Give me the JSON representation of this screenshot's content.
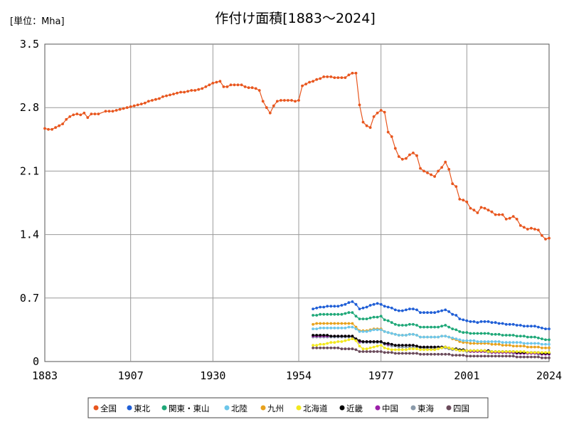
{
  "chart_data": {
    "type": "line",
    "title": "作付け面積[1883～2024]",
    "unit_label": "[単位：Mha]",
    "xlim": [
      1883,
      2024
    ],
    "ylim": [
      0,
      3.5
    ],
    "x_ticks": [
      1883,
      1907,
      1930,
      1954,
      1977,
      2001,
      2024
    ],
    "x_tick_labels": [
      "1883",
      "1907",
      "1930",
      "1954",
      "1977",
      "2001",
      "2024"
    ],
    "y_ticks": [
      0,
      0.7,
      1.4,
      2.1,
      2.8,
      3.5
    ],
    "y_tick_labels": [
      "0",
      "0.7",
      "1.4",
      "2.1",
      "2.8",
      "3.5"
    ],
    "grid": true,
    "legend_position": "bottom",
    "series": [
      {
        "name": "全国",
        "color": "#E8561E",
        "points": [
          [
            1883,
            2.57
          ],
          [
            1884,
            2.56
          ],
          [
            1885,
            2.56
          ],
          [
            1886,
            2.58
          ],
          [
            1887,
            2.6
          ],
          [
            1888,
            2.62
          ],
          [
            1889,
            2.67
          ],
          [
            1890,
            2.7
          ],
          [
            1891,
            2.72
          ],
          [
            1892,
            2.73
          ],
          [
            1893,
            2.72
          ],
          [
            1894,
            2.74
          ],
          [
            1895,
            2.69
          ],
          [
            1896,
            2.73
          ],
          [
            1897,
            2.73
          ],
          [
            1898,
            2.73
          ],
          [
            1900,
            2.76
          ],
          [
            1901,
            2.76
          ],
          [
            1902,
            2.76
          ],
          [
            1903,
            2.77
          ],
          [
            1904,
            2.78
          ],
          [
            1905,
            2.79
          ],
          [
            1906,
            2.8
          ],
          [
            1907,
            2.81
          ],
          [
            1908,
            2.82
          ],
          [
            1909,
            2.83
          ],
          [
            1910,
            2.84
          ],
          [
            1911,
            2.85
          ],
          [
            1912,
            2.87
          ],
          [
            1913,
            2.88
          ],
          [
            1914,
            2.89
          ],
          [
            1915,
            2.9
          ],
          [
            1916,
            2.92
          ],
          [
            1917,
            2.93
          ],
          [
            1918,
            2.94
          ],
          [
            1919,
            2.95
          ],
          [
            1920,
            2.96
          ],
          [
            1921,
            2.97
          ],
          [
            1922,
            2.97
          ],
          [
            1923,
            2.98
          ],
          [
            1924,
            2.99
          ],
          [
            1925,
            2.99
          ],
          [
            1926,
            3.0
          ],
          [
            1927,
            3.01
          ],
          [
            1928,
            3.03
          ],
          [
            1929,
            3.05
          ],
          [
            1930,
            3.07
          ],
          [
            1931,
            3.08
          ],
          [
            1932,
            3.09
          ],
          [
            1933,
            3.03
          ],
          [
            1934,
            3.03
          ],
          [
            1935,
            3.05
          ],
          [
            1936,
            3.05
          ],
          [
            1937,
            3.05
          ],
          [
            1938,
            3.05
          ],
          [
            1939,
            3.03
          ],
          [
            1940,
            3.02
          ],
          [
            1941,
            3.02
          ],
          [
            1942,
            3.01
          ],
          [
            1943,
            2.99
          ],
          [
            1944,
            2.87
          ],
          [
            1945,
            2.8
          ],
          [
            1946,
            2.74
          ],
          [
            1947,
            2.82
          ],
          [
            1948,
            2.87
          ],
          [
            1949,
            2.88
          ],
          [
            1950,
            2.88
          ],
          [
            1951,
            2.88
          ],
          [
            1952,
            2.88
          ],
          [
            1953,
            2.87
          ],
          [
            1954,
            2.88
          ],
          [
            1955,
            3.04
          ],
          [
            1956,
            3.06
          ],
          [
            1957,
            3.08
          ],
          [
            1958,
            3.09
          ],
          [
            1959,
            3.11
          ],
          [
            1960,
            3.12
          ],
          [
            1961,
            3.14
          ],
          [
            1962,
            3.14
          ],
          [
            1963,
            3.14
          ],
          [
            1964,
            3.13
          ],
          [
            1965,
            3.13
          ],
          [
            1966,
            3.13
          ],
          [
            1967,
            3.13
          ],
          [
            1968,
            3.16
          ],
          [
            1969,
            3.18
          ],
          [
            1970,
            3.18
          ],
          [
            1971,
            2.83
          ],
          [
            1972,
            2.64
          ],
          [
            1973,
            2.6
          ],
          [
            1974,
            2.58
          ],
          [
            1975,
            2.7
          ],
          [
            1976,
            2.74
          ],
          [
            1977,
            2.77
          ],
          [
            1978,
            2.75
          ],
          [
            1979,
            2.53
          ],
          [
            1980,
            2.48
          ],
          [
            1981,
            2.35
          ],
          [
            1982,
            2.26
          ],
          [
            1983,
            2.23
          ],
          [
            1984,
            2.24
          ],
          [
            1985,
            2.28
          ],
          [
            1986,
            2.3
          ],
          [
            1987,
            2.27
          ],
          [
            1988,
            2.13
          ],
          [
            1989,
            2.1
          ],
          [
            1990,
            2.08
          ],
          [
            1991,
            2.06
          ],
          [
            1992,
            2.04
          ],
          [
            1993,
            2.1
          ],
          [
            1994,
            2.14
          ],
          [
            1995,
            2.2
          ],
          [
            1996,
            2.12
          ],
          [
            1997,
            1.96
          ],
          [
            1998,
            1.93
          ],
          [
            1999,
            1.79
          ],
          [
            2000,
            1.78
          ],
          [
            2001,
            1.76
          ],
          [
            2002,
            1.69
          ],
          [
            2003,
            1.67
          ],
          [
            2004,
            1.64
          ],
          [
            2005,
            1.7
          ],
          [
            2006,
            1.69
          ],
          [
            2007,
            1.67
          ],
          [
            2008,
            1.65
          ],
          [
            2009,
            1.62
          ],
          [
            2010,
            1.62
          ],
          [
            2011,
            1.62
          ],
          [
            2012,
            1.57
          ],
          [
            2013,
            1.58
          ],
          [
            2014,
            1.6
          ],
          [
            2015,
            1.57
          ],
          [
            2016,
            1.5
          ],
          [
            2017,
            1.48
          ],
          [
            2018,
            1.46
          ],
          [
            2019,
            1.47
          ],
          [
            2020,
            1.46
          ],
          [
            2021,
            1.45
          ],
          [
            2022,
            1.39
          ],
          [
            2023,
            1.35
          ],
          [
            2024,
            1.36
          ]
        ]
      },
      {
        "name": "東北",
        "color": "#1F5ED6",
        "start": 1958,
        "values": [
          0.58,
          0.59,
          0.6,
          0.6,
          0.61,
          0.61,
          0.61,
          0.61,
          0.62,
          0.63,
          0.65,
          0.66,
          0.63,
          0.58,
          0.59,
          0.6,
          0.62,
          0.63,
          0.64,
          0.63,
          0.61,
          0.6,
          0.59,
          0.57,
          0.56,
          0.56,
          0.57,
          0.58,
          0.58,
          0.57,
          0.54,
          0.54,
          0.54,
          0.54,
          0.54,
          0.55,
          0.56,
          0.57,
          0.55,
          0.52,
          0.51,
          0.47,
          0.46,
          0.45,
          0.44,
          0.44,
          0.43,
          0.44,
          0.44,
          0.44,
          0.43,
          0.43,
          0.42,
          0.42,
          0.41,
          0.41,
          0.41,
          0.4,
          0.4,
          0.39,
          0.39,
          0.39,
          0.39,
          0.38,
          0.37,
          0.36,
          0.36
        ]
      },
      {
        "name": "関東・東山",
        "color": "#1FA878",
        "start": 1958,
        "values": [
          0.51,
          0.51,
          0.52,
          0.52,
          0.52,
          0.52,
          0.52,
          0.52,
          0.52,
          0.53,
          0.54,
          0.54,
          0.5,
          0.47,
          0.47,
          0.47,
          0.48,
          0.49,
          0.49,
          0.5,
          0.46,
          0.45,
          0.43,
          0.41,
          0.4,
          0.4,
          0.4,
          0.41,
          0.41,
          0.4,
          0.38,
          0.38,
          0.38,
          0.38,
          0.38,
          0.38,
          0.39,
          0.4,
          0.38,
          0.36,
          0.35,
          0.33,
          0.32,
          0.32,
          0.31,
          0.31,
          0.31,
          0.31,
          0.31,
          0.31,
          0.3,
          0.3,
          0.3,
          0.29,
          0.29,
          0.29,
          0.29,
          0.28,
          0.28,
          0.28,
          0.27,
          0.27,
          0.27,
          0.26,
          0.25,
          0.24,
          0.24
        ]
      },
      {
        "name": "北陸",
        "color": "#6CC6EA",
        "start": 1958,
        "values": [
          0.36,
          0.36,
          0.37,
          0.37,
          0.37,
          0.37,
          0.37,
          0.37,
          0.37,
          0.37,
          0.38,
          0.38,
          0.36,
          0.33,
          0.33,
          0.33,
          0.34,
          0.35,
          0.35,
          0.35,
          0.33,
          0.32,
          0.31,
          0.3,
          0.29,
          0.29,
          0.29,
          0.3,
          0.3,
          0.29,
          0.27,
          0.27,
          0.27,
          0.27,
          0.27,
          0.27,
          0.28,
          0.28,
          0.27,
          0.26,
          0.25,
          0.24,
          0.23,
          0.23,
          0.23,
          0.23,
          0.22,
          0.22,
          0.22,
          0.22,
          0.22,
          0.22,
          0.22,
          0.21,
          0.21,
          0.21,
          0.21,
          0.21,
          0.21,
          0.2,
          0.2,
          0.2,
          0.2,
          0.2,
          0.19,
          0.19,
          0.19
        ]
      },
      {
        "name": "九州",
        "color": "#E8A21E",
        "start": 1958,
        "values": [
          0.41,
          0.42,
          0.42,
          0.42,
          0.42,
          0.42,
          0.42,
          0.42,
          0.42,
          0.42,
          0.42,
          0.42,
          0.38,
          0.34,
          0.34,
          0.34,
          0.35,
          0.36,
          0.36,
          0.36,
          0.33,
          0.32,
          0.31,
          0.3,
          0.29,
          0.29,
          0.29,
          0.3,
          0.3,
          0.29,
          0.27,
          0.27,
          0.27,
          0.27,
          0.27,
          0.27,
          0.28,
          0.28,
          0.27,
          0.25,
          0.24,
          0.22,
          0.21,
          0.21,
          0.2,
          0.2,
          0.2,
          0.2,
          0.2,
          0.2,
          0.19,
          0.19,
          0.19,
          0.18,
          0.18,
          0.18,
          0.17,
          0.17,
          0.17,
          0.17,
          0.16,
          0.16,
          0.16,
          0.16,
          0.15,
          0.15,
          0.15
        ]
      },
      {
        "name": "北海道",
        "color": "#F2E81E",
        "start": 1958,
        "values": [
          0.18,
          0.18,
          0.19,
          0.19,
          0.2,
          0.21,
          0.21,
          0.22,
          0.22,
          0.23,
          0.24,
          0.25,
          0.23,
          0.17,
          0.14,
          0.14,
          0.15,
          0.16,
          0.17,
          0.18,
          0.15,
          0.14,
          0.13,
          0.13,
          0.13,
          0.13,
          0.13,
          0.14,
          0.14,
          0.14,
          0.13,
          0.13,
          0.13,
          0.13,
          0.13,
          0.14,
          0.15,
          0.16,
          0.15,
          0.14,
          0.13,
          0.12,
          0.12,
          0.12,
          0.12,
          0.12,
          0.12,
          0.12,
          0.12,
          0.11,
          0.11,
          0.11,
          0.11,
          0.11,
          0.11,
          0.11,
          0.11,
          0.11,
          0.11,
          0.11,
          0.1,
          0.1,
          0.1,
          0.1,
          0.1,
          0.1,
          0.1
        ]
      },
      {
        "name": "近畿",
        "color": "#000000",
        "start": 1958,
        "values": [
          0.29,
          0.29,
          0.29,
          0.29,
          0.29,
          0.28,
          0.28,
          0.28,
          0.28,
          0.28,
          0.28,
          0.28,
          0.25,
          0.23,
          0.22,
          0.22,
          0.22,
          0.22,
          0.22,
          0.22,
          0.2,
          0.2,
          0.19,
          0.18,
          0.18,
          0.18,
          0.18,
          0.18,
          0.18,
          0.17,
          0.16,
          0.16,
          0.16,
          0.16,
          0.16,
          0.16,
          0.16,
          0.16,
          0.15,
          0.14,
          0.14,
          0.13,
          0.13,
          0.12,
          0.12,
          0.12,
          0.12,
          0.12,
          0.12,
          0.12,
          0.11,
          0.11,
          0.11,
          0.11,
          0.11,
          0.11,
          0.11,
          0.1,
          0.1,
          0.1,
          0.1,
          0.1,
          0.1,
          0.1,
          0.09,
          0.09,
          0.09
        ]
      },
      {
        "name": "中国",
        "color": "#9B1FA8",
        "start": 1958,
        "values": [
          0.28,
          0.28,
          0.28,
          0.28,
          0.28,
          0.28,
          0.28,
          0.28,
          0.28,
          0.28,
          0.28,
          0.28,
          0.25,
          0.22,
          0.22,
          0.22,
          0.22,
          0.22,
          0.22,
          0.22,
          0.2,
          0.19,
          0.19,
          0.18,
          0.18,
          0.18,
          0.18,
          0.18,
          0.18,
          0.17,
          0.16,
          0.16,
          0.16,
          0.16,
          0.16,
          0.16,
          0.16,
          0.16,
          0.15,
          0.14,
          0.13,
          0.12,
          0.12,
          0.12,
          0.11,
          0.11,
          0.11,
          0.11,
          0.11,
          0.11,
          0.1,
          0.1,
          0.1,
          0.1,
          0.1,
          0.1,
          0.1,
          0.09,
          0.09,
          0.09,
          0.09,
          0.09,
          0.09,
          0.09,
          0.08,
          0.08,
          0.08
        ]
      },
      {
        "name": "東海",
        "color": "#8A9AAA",
        "start": 1958,
        "values": [
          0.27,
          0.27,
          0.27,
          0.27,
          0.27,
          0.27,
          0.27,
          0.27,
          0.27,
          0.27,
          0.27,
          0.27,
          0.24,
          0.21,
          0.21,
          0.21,
          0.21,
          0.21,
          0.21,
          0.21,
          0.19,
          0.18,
          0.17,
          0.17,
          0.16,
          0.16,
          0.16,
          0.16,
          0.16,
          0.16,
          0.15,
          0.15,
          0.14,
          0.14,
          0.14,
          0.14,
          0.15,
          0.15,
          0.14,
          0.13,
          0.13,
          0.12,
          0.12,
          0.11,
          0.11,
          0.11,
          0.11,
          0.11,
          0.11,
          0.1,
          0.1,
          0.1,
          0.1,
          0.1,
          0.1,
          0.1,
          0.09,
          0.09,
          0.09,
          0.09,
          0.09,
          0.09,
          0.09,
          0.08,
          0.08,
          0.08,
          0.08
        ]
      },
      {
        "name": "四国",
        "color": "#6A4A5A",
        "start": 1958,
        "values": [
          0.15,
          0.15,
          0.15,
          0.15,
          0.15,
          0.15,
          0.15,
          0.15,
          0.14,
          0.14,
          0.14,
          0.14,
          0.13,
          0.11,
          0.11,
          0.11,
          0.11,
          0.11,
          0.11,
          0.11,
          0.1,
          0.1,
          0.1,
          0.09,
          0.09,
          0.09,
          0.09,
          0.09,
          0.09,
          0.09,
          0.08,
          0.08,
          0.08,
          0.08,
          0.08,
          0.08,
          0.08,
          0.08,
          0.08,
          0.07,
          0.07,
          0.07,
          0.07,
          0.06,
          0.06,
          0.06,
          0.06,
          0.06,
          0.06,
          0.06,
          0.06,
          0.06,
          0.06,
          0.06,
          0.06,
          0.06,
          0.06,
          0.05,
          0.05,
          0.05,
          0.05,
          0.05,
          0.05,
          0.05,
          0.04,
          0.04,
          0.04
        ]
      }
    ]
  }
}
